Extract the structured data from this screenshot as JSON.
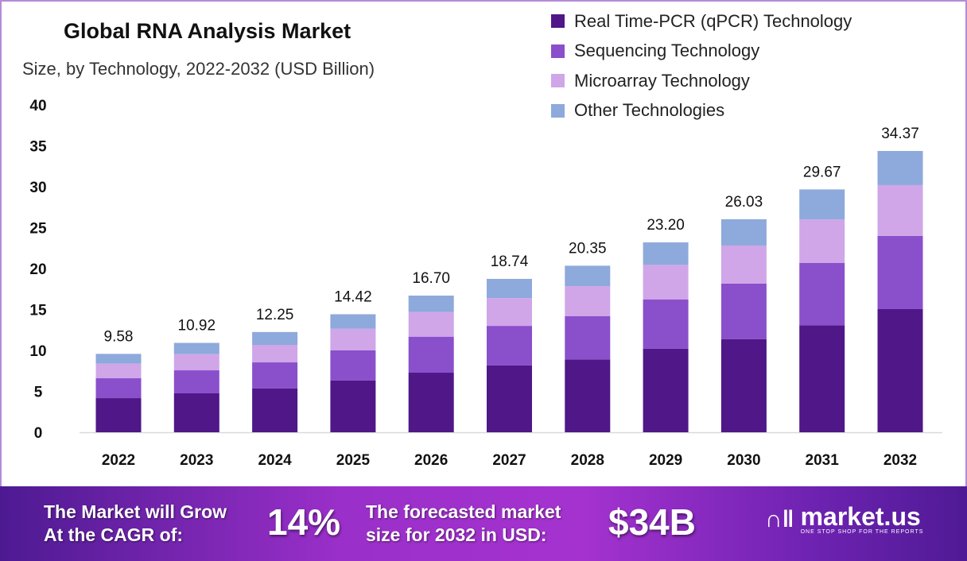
{
  "chart_data": {
    "type": "bar",
    "stacked": true,
    "title": "Global RNA Analysis Market",
    "subtitle": "Size, by Technology, 2022-2032 (USD Billion)",
    "xlabel": "",
    "ylabel": "",
    "ylim": [
      0,
      40
    ],
    "yticks": [
      0,
      5,
      10,
      15,
      20,
      25,
      30,
      35,
      40
    ],
    "grid": false,
    "legend_position": "top-right",
    "categories": [
      "2022",
      "2023",
      "2024",
      "2025",
      "2026",
      "2027",
      "2028",
      "2029",
      "2030",
      "2031",
      "2032"
    ],
    "series": [
      {
        "name": "Real Time-PCR (qPCR) Technology",
        "color": "#4f1787",
        "values": [
          4.17,
          4.76,
          5.37,
          6.34,
          7.28,
          8.16,
          8.9,
          10.2,
          11.39,
          13.08,
          15.05
        ]
      },
      {
        "name": "Sequencing Technology",
        "color": "#8a4fcb",
        "values": [
          2.43,
          2.81,
          3.17,
          3.66,
          4.4,
          4.84,
          5.3,
          6.04,
          6.77,
          7.6,
          8.95
        ]
      },
      {
        "name": "Microarray Technology",
        "color": "#d0a6e8",
        "values": [
          1.78,
          1.97,
          2.14,
          2.65,
          3.01,
          3.4,
          3.66,
          4.21,
          4.66,
          5.32,
          6.2
        ]
      },
      {
        "name": "Other Technologies",
        "color": "#8ea9db",
        "values": [
          1.2,
          1.38,
          1.57,
          1.77,
          2.01,
          2.34,
          2.49,
          2.75,
          3.21,
          3.67,
          4.17
        ]
      }
    ],
    "totals": [
      "9.58",
      "10.92",
      "12.25",
      "14.42",
      "16.70",
      "18.74",
      "20.35",
      "23.20",
      "26.03",
      "29.67",
      "34.37"
    ]
  },
  "footer": {
    "cagr_label_line1": "The Market will Grow",
    "cagr_label_line2": "At the CAGR of:",
    "cagr_value": "14%",
    "forecast_label_line1": "The forecasted market",
    "forecast_label_line2": "size for 2032 in USD:",
    "forecast_value": "$34B",
    "logo_name": "market.us",
    "logo_tagline": "ONE STOP SHOP FOR THE REPORTS"
  },
  "colors": {
    "footer_gradient_start": "#4d1a92",
    "footer_gradient_mid": "#a532cf",
    "frame": "#b58ad8"
  }
}
